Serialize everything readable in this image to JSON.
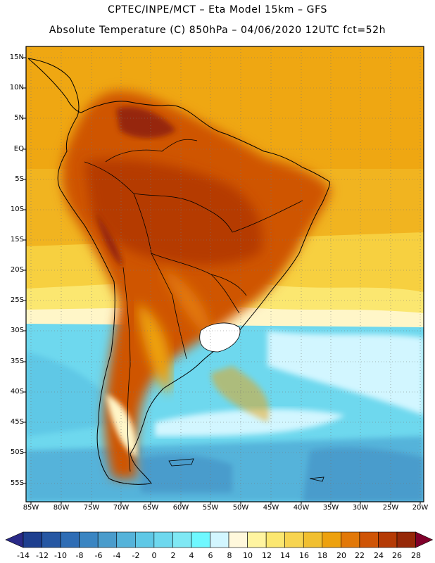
{
  "header": {
    "line1": "CPTEC/INPE/MCT –  Eta Model 15km – GFS",
    "line2": "Absolute Temperature (C) 850hPa – 04/06/2020 12UTC fct=52h"
  },
  "map": {
    "lat_labels": [
      "15N",
      "10N",
      "5N",
      "EQ",
      "5S",
      "10S",
      "15S",
      "20S",
      "25S",
      "30S",
      "35S",
      "40S",
      "45S",
      "50S",
      "55S"
    ],
    "lon_labels": [
      "85W",
      "80W",
      "75W",
      "70W",
      "65W",
      "60W",
      "55W",
      "50W",
      "45W",
      "40W",
      "35W",
      "30W",
      "25W",
      "20W"
    ],
    "land_color": "#c04808",
    "icon": "continent-outline"
  },
  "colorbar": {
    "labels": [
      "-14",
      "-12",
      "-10",
      "-8",
      "-6",
      "-4",
      "-2",
      "0",
      "2",
      "4",
      "6",
      "8",
      "10",
      "12",
      "14",
      "16",
      "18",
      "20",
      "22",
      "24",
      "26",
      "28"
    ],
    "colors": [
      "#1e3f8f",
      "#2657a3",
      "#2f6db5",
      "#3a85c2",
      "#4a9ccc",
      "#55b3da",
      "#5fc8e6",
      "#6ed8ee",
      "#7fe8f4",
      "#6ff8ff",
      "#d2f6ff",
      "#fff8dc",
      "#fff4a0",
      "#fbe770",
      "#f7d450",
      "#f1bf30",
      "#eda10e",
      "#e27808",
      "#cf5406",
      "#b53a05",
      "#962808",
      "#701808"
    ],
    "under_color": "#2a2a88",
    "over_color": "#80002a"
  }
}
